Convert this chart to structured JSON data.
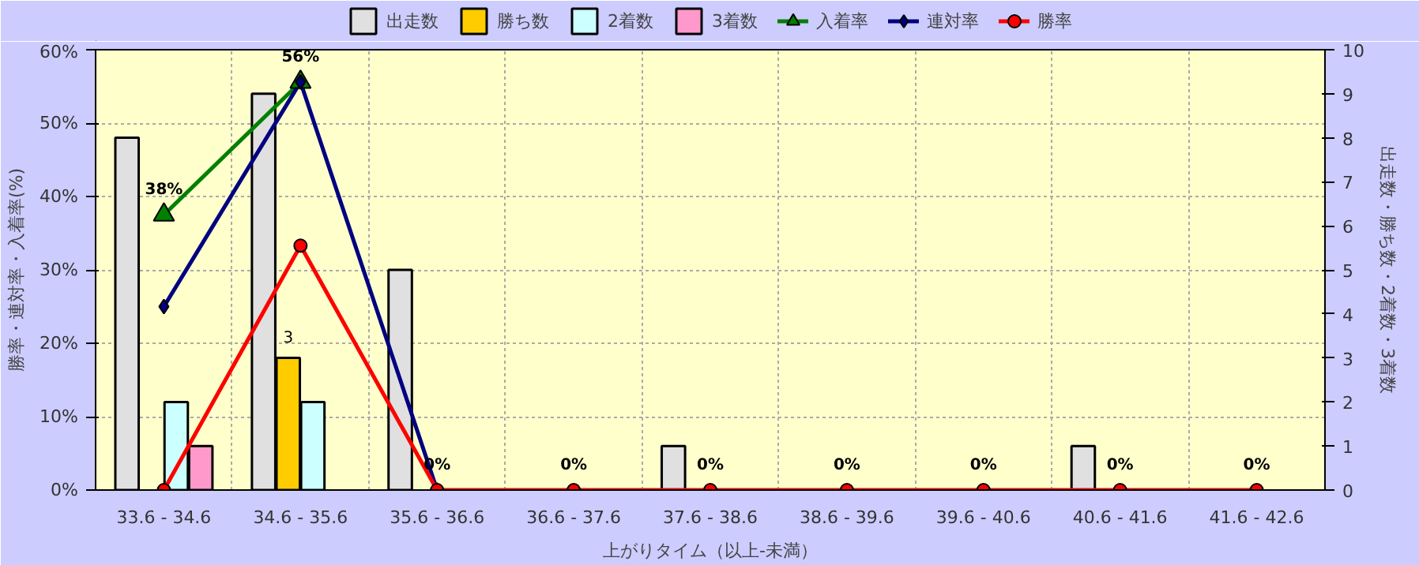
{
  "chart_data": {
    "type": "bar",
    "xlabel": "上がりタイム（以上-未満）",
    "ylabel": "勝率・連対率・入着率(%)",
    "y2label": "出走数・勝ち数・2着数・3着数",
    "categories": [
      "33.6 - 34.6",
      "34.6 - 35.6",
      "35.6 - 36.6",
      "36.6 - 37.6",
      "37.6 - 38.6",
      "38.6 - 39.6",
      "39.6 - 40.6",
      "40.6 - 41.6",
      "41.6 - 42.6"
    ],
    "series": [
      {
        "name": "出走数",
        "axis": "y2",
        "color": "#e0e0e0",
        "values": [
          8,
          9,
          5,
          null,
          1,
          null,
          null,
          1,
          null
        ]
      },
      {
        "name": "勝ち数",
        "axis": "y2",
        "color": "#ffcc00",
        "values": [
          null,
          3,
          null,
          null,
          null,
          null,
          null,
          null,
          null
        ],
        "value_labels": [
          null,
          "3",
          null,
          null,
          null,
          null,
          null,
          null,
          null
        ]
      },
      {
        "name": "2着数",
        "axis": "y2",
        "color": "#ccffff",
        "values": [
          2,
          2,
          null,
          null,
          null,
          null,
          null,
          null,
          null
        ]
      },
      {
        "name": "3着数",
        "axis": "y2",
        "color": "#ff99cc",
        "values": [
          1,
          null,
          null,
          null,
          null,
          null,
          null,
          null,
          null
        ]
      },
      {
        "name": "入着率",
        "type": "line",
        "marker": "triangle",
        "color": "#008000",
        "values": [
          37.5,
          55.6,
          null,
          null,
          null,
          null,
          null,
          null,
          null
        ],
        "value_labels": [
          "38%",
          "56%",
          null,
          null,
          null,
          null,
          null,
          null,
          null
        ]
      },
      {
        "name": "連対率",
        "type": "line",
        "marker": "diamond",
        "color": "#000080",
        "values": [
          25,
          55.6,
          0,
          null,
          null,
          null,
          null,
          null,
          null
        ]
      },
      {
        "name": "勝率",
        "type": "line",
        "marker": "circle",
        "color": "#ff0000",
        "values": [
          0,
          33.3,
          0,
          0,
          0,
          0,
          0,
          0,
          0
        ],
        "value_labels": [
          null,
          null,
          "0%",
          "0%",
          "0%",
          "0%",
          "0%",
          "0%",
          "0%"
        ]
      }
    ],
    "ylim": [
      0,
      60
    ],
    "yticks": [
      {
        "value": 0,
        "label": "0%"
      },
      {
        "value": 10,
        "label": "10%"
      },
      {
        "value": 20,
        "label": "20%"
      },
      {
        "value": 30,
        "label": "30%"
      },
      {
        "value": 40,
        "label": "40%"
      },
      {
        "value": 50,
        "label": "50%"
      },
      {
        "value": 60,
        "label": "60%"
      }
    ],
    "y2lim": [
      0,
      10
    ],
    "y2ticks": [
      0,
      1,
      2,
      3,
      4,
      5,
      6,
      7,
      8,
      9,
      10
    ],
    "grid": true,
    "legend": "top"
  }
}
